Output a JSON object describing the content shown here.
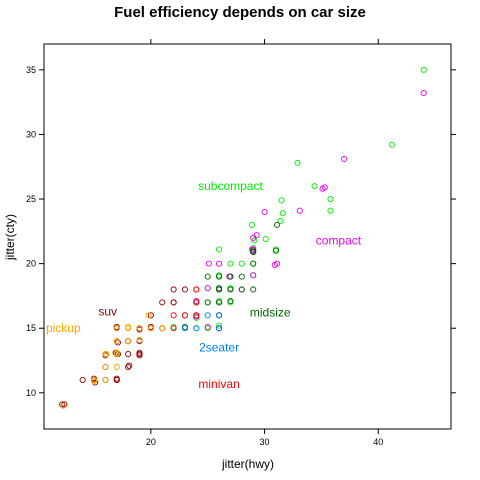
{
  "chart_data": {
    "type": "scatter",
    "title": "Fuel efficiency depends on car size",
    "xlabel": "jitter(hwy)",
    "ylabel": "jitter(cty)",
    "xlim": [
      10.6,
      46.4
    ],
    "ylim": [
      7.2,
      37.0
    ],
    "xticks": [
      "20",
      "30",
      "40"
    ],
    "yticks": [
      "10",
      "15",
      "20",
      "25",
      "30",
      "35"
    ],
    "xtick_values": [
      20,
      30,
      40
    ],
    "ytick_values": [
      10,
      15,
      20,
      25,
      30,
      35
    ],
    "grid": false,
    "series": [
      {
        "name": "subcompact",
        "color": "#00ee00",
        "label_at": [
          27.0,
          26.0
        ],
        "points": [
          [
            44.0,
            35.0
          ],
          [
            41.2,
            29.2
          ],
          [
            32.9,
            27.8
          ],
          [
            34.4,
            26.0
          ],
          [
            35.8,
            25.0
          ],
          [
            31.5,
            24.9
          ],
          [
            31.6,
            23.9
          ],
          [
            35.8,
            24.1
          ],
          [
            28.9,
            23.0
          ],
          [
            31.4,
            23.3
          ],
          [
            29.1,
            21.8
          ],
          [
            30.1,
            21.9
          ],
          [
            26.0,
            21.1
          ],
          [
            29.0,
            21.2
          ],
          [
            31.0,
            21.1
          ],
          [
            27.0,
            20.0
          ],
          [
            28.0,
            20.0
          ],
          [
            29.0,
            20.0
          ],
          [
            26.0,
            19.1
          ],
          [
            26.0,
            19.0
          ],
          [
            27.0,
            19.0
          ],
          [
            29.0,
            19.1
          ],
          [
            25.0,
            18.1
          ],
          [
            26.0,
            18.0
          ],
          [
            27.0,
            18.1
          ],
          [
            26.0,
            17.1
          ],
          [
            27.0,
            17.0
          ],
          [
            25.0,
            17.0
          ],
          [
            24.0,
            17.0
          ],
          [
            26.0,
            15.2
          ],
          [
            24.0,
            15.8
          ],
          [
            24.0,
            15.0
          ],
          [
            21.0,
            15.0
          ],
          [
            22.0,
            15.1
          ],
          [
            26.0,
            16.0
          ],
          [
            25.0,
            15.0
          ]
        ]
      },
      {
        "name": "compact",
        "color": "#ee00ee",
        "label_at": [
          36.5,
          21.8
        ],
        "points": [
          [
            44.0,
            33.2
          ],
          [
            37.0,
            28.1
          ],
          [
            35.1,
            25.8
          ],
          [
            35.3,
            25.9
          ],
          [
            33.1,
            24.1
          ],
          [
            30.0,
            24.0
          ],
          [
            29.3,
            22.2
          ],
          [
            29.0,
            22.0
          ],
          [
            29.0,
            21.0
          ],
          [
            28.9,
            21.1
          ],
          [
            31.1,
            20.0
          ],
          [
            30.9,
            19.9
          ],
          [
            29.0,
            20.9
          ],
          [
            29.0,
            21.1
          ],
          [
            29.0,
            19.1
          ],
          [
            27.0,
            19.0
          ],
          [
            25.1,
            20.0
          ],
          [
            26.0,
            20.0
          ],
          [
            26.9,
            19.0
          ],
          [
            26.0,
            18.0
          ],
          [
            27.0,
            18.0
          ],
          [
            25.0,
            18.1
          ],
          [
            26.0,
            18.0
          ],
          [
            26.0,
            17.0
          ],
          [
            24.0,
            17.1
          ],
          [
            28.0,
            18.0
          ],
          [
            26.0,
            16.0
          ],
          [
            24.0,
            15.9
          ],
          [
            26.0,
            15.0
          ],
          [
            25.0,
            15.1
          ]
        ]
      },
      {
        "name": "midsize",
        "color": "#006400",
        "label_at": [
          30.5,
          16.2
        ],
        "points": [
          [
            31.1,
            23.0
          ],
          [
            31.0,
            21.0
          ],
          [
            29.0,
            21.0
          ],
          [
            29.0,
            20.9
          ],
          [
            29.0,
            20.0
          ],
          [
            28.0,
            19.0
          ],
          [
            27.0,
            19.0
          ],
          [
            26.0,
            19.0
          ],
          [
            25.0,
            19.0
          ],
          [
            27.0,
            18.0
          ],
          [
            26.0,
            18.0
          ],
          [
            26.0,
            18.1
          ],
          [
            28.0,
            18.0
          ],
          [
            29.0,
            18.0
          ],
          [
            26.0,
            17.0
          ],
          [
            25.0,
            17.0
          ],
          [
            27.0,
            17.1
          ],
          [
            24.0,
            17.0
          ],
          [
            26.0,
            16.0
          ],
          [
            24.0,
            16.0
          ],
          [
            26.0,
            15.0
          ],
          [
            23.0,
            15.1
          ]
        ]
      },
      {
        "name": "2seater",
        "color": "#0080ff",
        "label_at": [
          26.0,
          13.5
        ],
        "points": [
          [
            26.0,
            16.0
          ],
          [
            25.0,
            16.0
          ],
          [
            26.0,
            15.0
          ],
          [
            24.0,
            15.0
          ],
          [
            23.0,
            15.0
          ]
        ]
      },
      {
        "name": "minivan",
        "color": "#ff0000",
        "label_at": [
          26.0,
          10.7
        ],
        "points": [
          [
            24.0,
            18.0
          ],
          [
            24.0,
            17.0
          ],
          [
            22.0,
            17.0
          ],
          [
            23.0,
            16.0
          ],
          [
            22.0,
            16.0
          ],
          [
            24.0,
            16.0
          ],
          [
            21.0,
            15.0
          ],
          [
            22.0,
            15.0
          ],
          [
            17.0,
            11.0
          ],
          [
            24.0,
            18.0
          ],
          [
            23.0,
            16.0
          ]
        ]
      },
      {
        "name": "suv",
        "color": "#8b0000",
        "label_at": [
          16.2,
          16.3
        ],
        "points": [
          [
            12.2,
            9.1
          ],
          [
            12.4,
            9.1
          ],
          [
            14.0,
            11.0
          ],
          [
            15.0,
            11.0
          ],
          [
            15.1,
            10.8
          ],
          [
            16.0,
            11.0
          ],
          [
            17.0,
            11.0
          ],
          [
            17.0,
            11.1
          ],
          [
            16.0,
            12.0
          ],
          [
            18.0,
            12.0
          ],
          [
            17.0,
            13.0
          ],
          [
            18.0,
            13.0
          ],
          [
            19.0,
            13.1
          ],
          [
            17.0,
            14.0
          ],
          [
            17.1,
            13.9
          ],
          [
            18.0,
            14.0
          ],
          [
            19.0,
            14.0
          ],
          [
            19.0,
            15.0
          ],
          [
            20.0,
            15.0
          ],
          [
            19.0,
            14.9
          ],
          [
            20.0,
            15.1
          ],
          [
            17.0,
            15.0
          ],
          [
            17.0,
            15.1
          ],
          [
            20.0,
            16.0
          ],
          [
            21.0,
            17.0
          ],
          [
            22.0,
            17.0
          ],
          [
            22.0,
            18.0
          ],
          [
            23.0,
            18.0
          ],
          [
            17.1,
            13.0
          ],
          [
            18.0,
            14.0
          ],
          [
            16.9,
            13.1
          ],
          [
            19.0,
            12.9
          ],
          [
            16.0,
            12.9
          ],
          [
            18.1,
            12.1
          ],
          [
            19.0,
            13.0
          ],
          [
            15.0,
            11.1
          ]
        ]
      },
      {
        "name": "pickup",
        "color": "#ffa500",
        "label_at": [
          12.3,
          15.0
        ],
        "points": [
          [
            12.3,
            9.0
          ],
          [
            15.0,
            11.0
          ],
          [
            16.0,
            11.0
          ],
          [
            15.0,
            10.9
          ],
          [
            16.0,
            12.0
          ],
          [
            17.0,
            13.0
          ],
          [
            16.0,
            13.0
          ],
          [
            17.0,
            14.0
          ],
          [
            18.0,
            14.0
          ],
          [
            17.0,
            15.0
          ],
          [
            18.0,
            15.0
          ],
          [
            19.0,
            15.0
          ],
          [
            19.8,
            16.0
          ],
          [
            21.0,
            15.0
          ],
          [
            20.0,
            15.0
          ],
          [
            17.0,
            13.1
          ],
          [
            16.1,
            13.0
          ],
          [
            18.0,
            15.1
          ],
          [
            17.0,
            12.0
          ],
          [
            19.0,
            14.1
          ]
        ]
      }
    ]
  }
}
